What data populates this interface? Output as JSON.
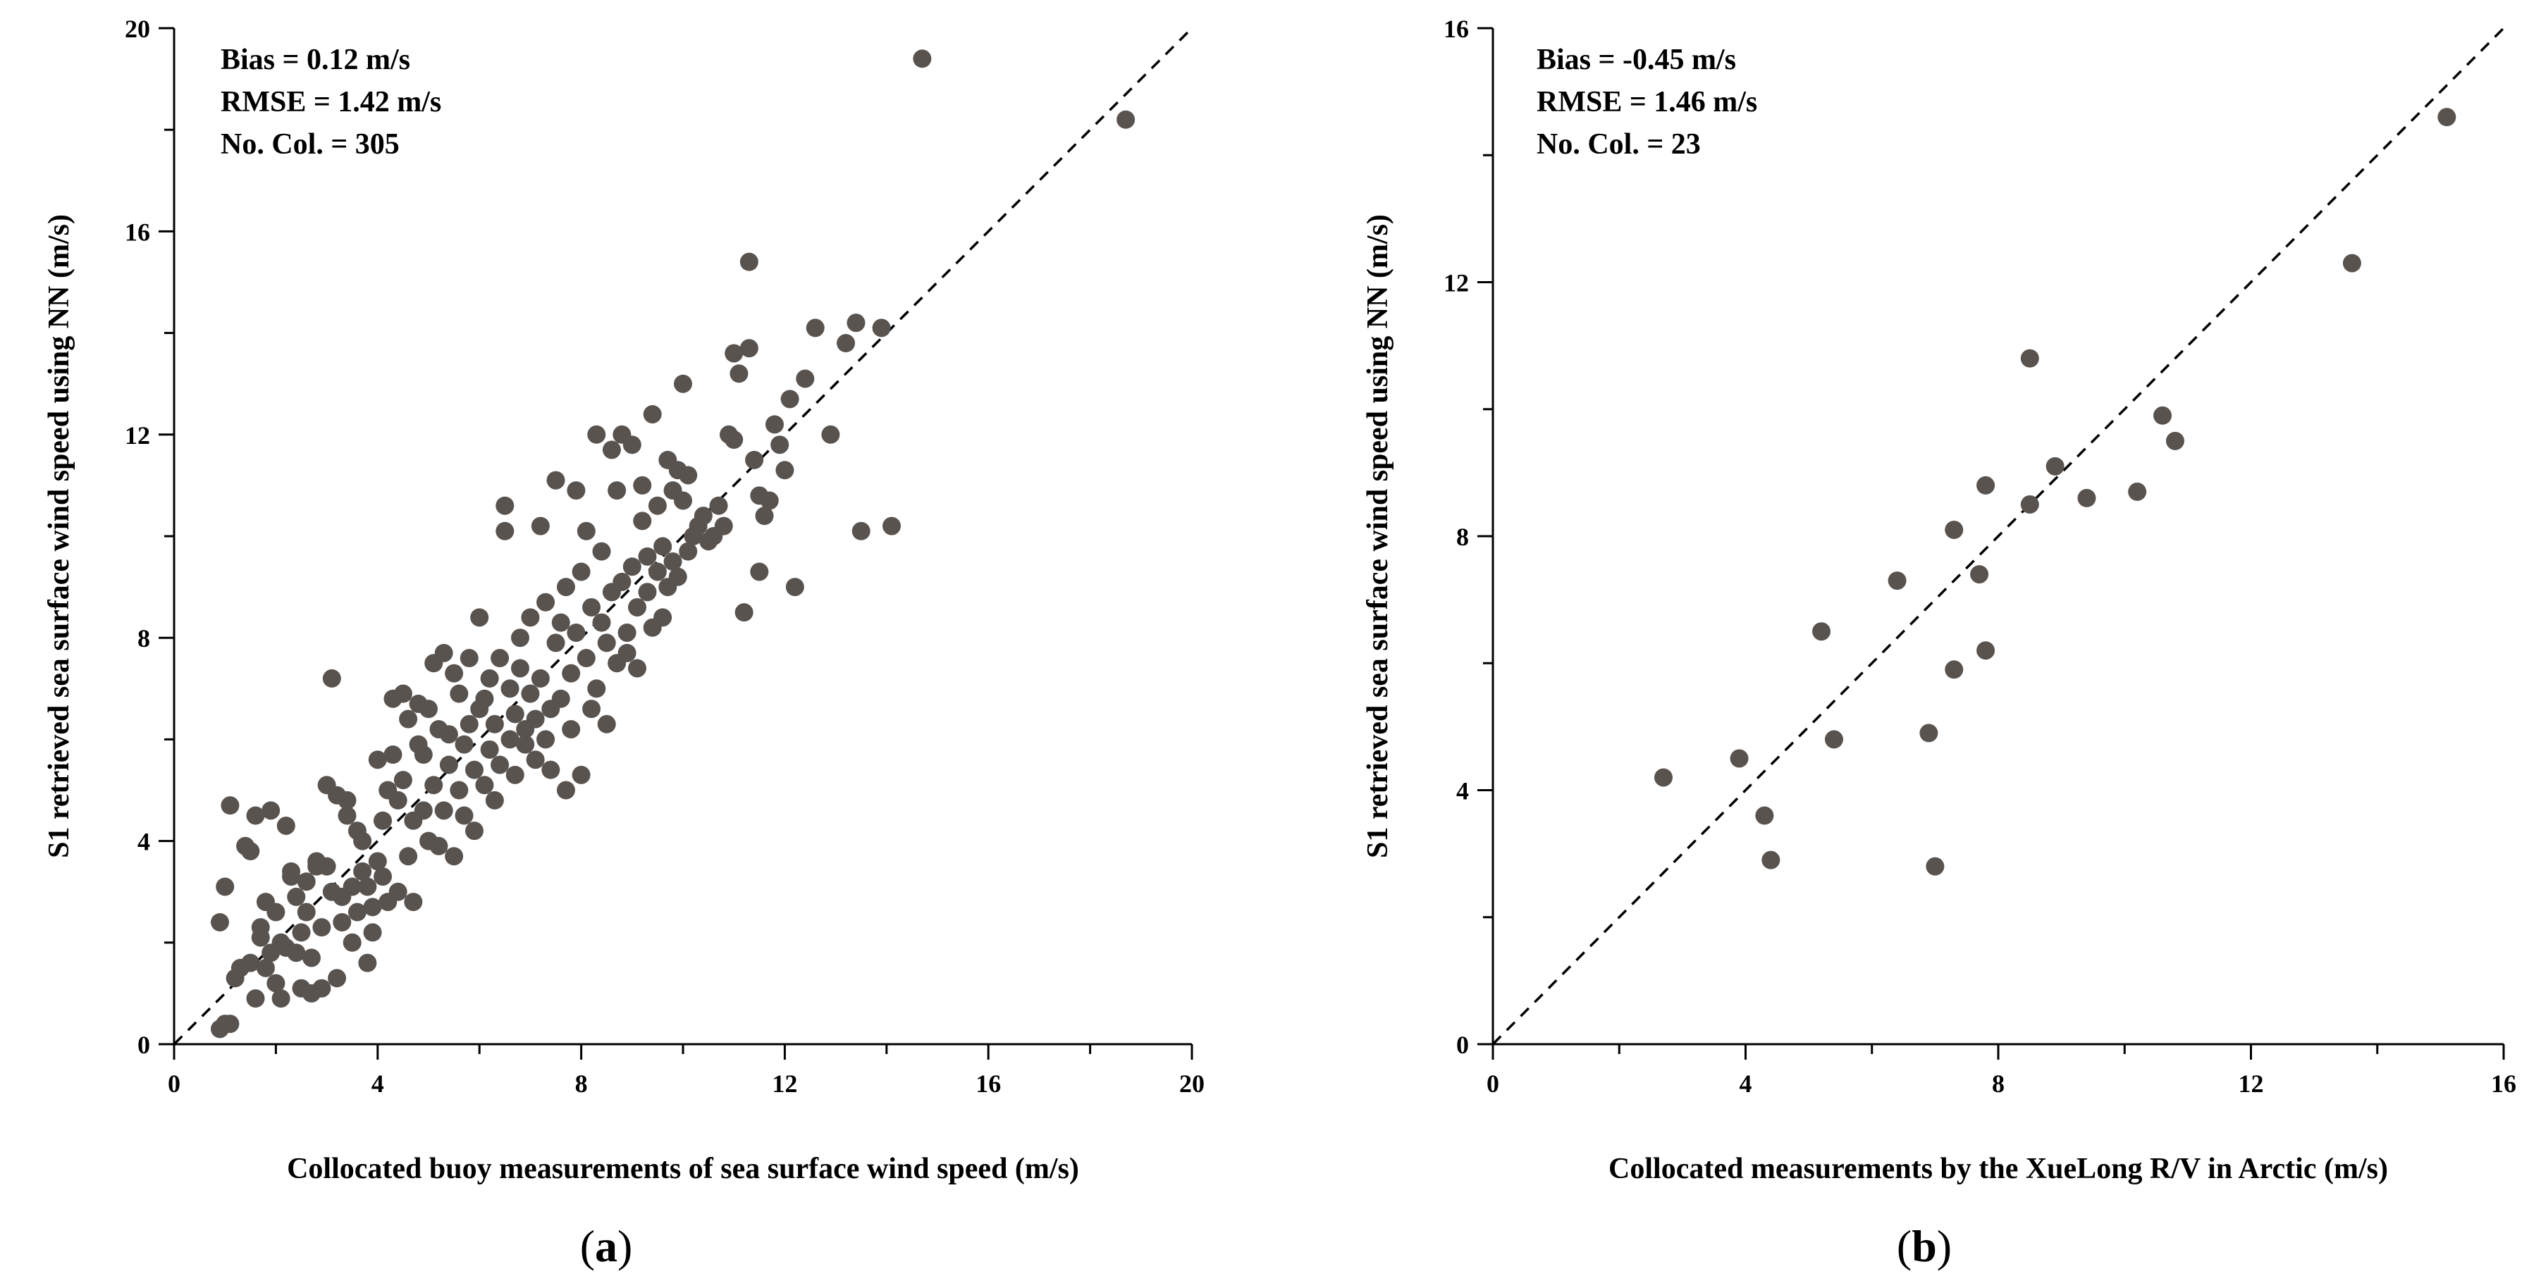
{
  "chart_data": [
    {
      "type": "scatter",
      "panel_label": "(a)",
      "panel_letter": "a",
      "xlabel": "Collocated buoy measurements of sea surface wind speed (m/s)",
      "ylabel": "S1 retrieved sea surface wind speed using NN (m/s)",
      "xlim": [
        0,
        20
      ],
      "ylim": [
        0,
        20
      ],
      "xticks": [
        0,
        4,
        8,
        12,
        16,
        20
      ],
      "yticks": [
        0,
        4,
        8,
        12,
        16,
        20
      ],
      "reference_line": "1:1 dashed",
      "annotations": [
        "Bias = 0.12 m/s",
        "RMSE =  1.42 m/s",
        "No. Col. = 305"
      ],
      "point_color": "#59534f",
      "points": [
        [
          0.9,
          2.4
        ],
        [
          1.0,
          0.4
        ],
        [
          1.1,
          0.4
        ],
        [
          0.9,
          0.3
        ],
        [
          1.2,
          1.3
        ],
        [
          1.0,
          3.1
        ],
        [
          1.1,
          4.7
        ],
        [
          1.3,
          1.5
        ],
        [
          1.4,
          3.9
        ],
        [
          1.5,
          1.6
        ],
        [
          1.5,
          3.8
        ],
        [
          1.6,
          4.5
        ],
        [
          1.6,
          0.9
        ],
        [
          1.7,
          2.1
        ],
        [
          1.7,
          2.3
        ],
        [
          1.8,
          2.8
        ],
        [
          1.8,
          1.5
        ],
        [
          1.9,
          1.8
        ],
        [
          1.9,
          4.6
        ],
        [
          2.0,
          2.6
        ],
        [
          2.0,
          1.2
        ],
        [
          2.1,
          2.0
        ],
        [
          2.1,
          0.9
        ],
        [
          2.2,
          4.3
        ],
        [
          2.2,
          1.9
        ],
        [
          2.3,
          3.3
        ],
        [
          2.3,
          3.4
        ],
        [
          2.4,
          2.9
        ],
        [
          2.4,
          1.8
        ],
        [
          2.5,
          1.1
        ],
        [
          2.5,
          2.2
        ],
        [
          2.6,
          2.6
        ],
        [
          2.6,
          3.2
        ],
        [
          2.7,
          1.0
        ],
        [
          2.7,
          1.7
        ],
        [
          2.8,
          3.5
        ],
        [
          2.8,
          3.6
        ],
        [
          2.9,
          1.1
        ],
        [
          2.9,
          2.3
        ],
        [
          3.0,
          3.5
        ],
        [
          3.0,
          5.1
        ],
        [
          3.1,
          3.0
        ],
        [
          3.1,
          7.2
        ],
        [
          3.2,
          4.9
        ],
        [
          3.2,
          1.3
        ],
        [
          3.3,
          2.4
        ],
        [
          3.3,
          2.9
        ],
        [
          3.4,
          4.5
        ],
        [
          3.4,
          4.8
        ],
        [
          3.5,
          2.0
        ],
        [
          3.5,
          3.1
        ],
        [
          3.6,
          4.2
        ],
        [
          3.6,
          2.6
        ],
        [
          3.7,
          3.4
        ],
        [
          3.7,
          4.0
        ],
        [
          3.8,
          1.6
        ],
        [
          3.8,
          3.1
        ],
        [
          3.9,
          2.2
        ],
        [
          3.9,
          2.7
        ],
        [
          4.0,
          5.6
        ],
        [
          4.0,
          3.6
        ],
        [
          4.1,
          4.4
        ],
        [
          4.1,
          3.3
        ],
        [
          4.2,
          5.0
        ],
        [
          4.2,
          2.8
        ],
        [
          4.3,
          5.7
        ],
        [
          4.3,
          6.8
        ],
        [
          4.4,
          4.8
        ],
        [
          4.4,
          3.0
        ],
        [
          4.5,
          6.9
        ],
        [
          4.5,
          5.2
        ],
        [
          4.6,
          3.7
        ],
        [
          4.6,
          6.4
        ],
        [
          4.7,
          4.4
        ],
        [
          4.7,
          2.8
        ],
        [
          4.8,
          5.9
        ],
        [
          4.8,
          6.7
        ],
        [
          4.9,
          4.6
        ],
        [
          4.9,
          5.7
        ],
        [
          5.0,
          4.0
        ],
        [
          5.0,
          6.6
        ],
        [
          5.1,
          5.1
        ],
        [
          5.1,
          7.5
        ],
        [
          5.2,
          3.9
        ],
        [
          5.2,
          6.2
        ],
        [
          5.3,
          7.7
        ],
        [
          5.3,
          4.6
        ],
        [
          5.4,
          5.5
        ],
        [
          5.4,
          6.1
        ],
        [
          5.5,
          3.7
        ],
        [
          5.5,
          7.3
        ],
        [
          5.6,
          5.0
        ],
        [
          5.6,
          6.9
        ],
        [
          5.7,
          4.5
        ],
        [
          5.7,
          5.9
        ],
        [
          5.8,
          6.3
        ],
        [
          5.8,
          7.6
        ],
        [
          5.9,
          5.4
        ],
        [
          5.9,
          4.2
        ],
        [
          6.0,
          6.6
        ],
        [
          6.0,
          8.4
        ],
        [
          6.1,
          5.1
        ],
        [
          6.1,
          6.8
        ],
        [
          6.2,
          5.8
        ],
        [
          6.2,
          7.2
        ],
        [
          6.3,
          4.8
        ],
        [
          6.3,
          6.3
        ],
        [
          6.4,
          7.6
        ],
        [
          6.4,
          5.5
        ],
        [
          6.5,
          10.1
        ],
        [
          6.5,
          10.6
        ],
        [
          6.6,
          6.0
        ],
        [
          6.6,
          7.0
        ],
        [
          6.7,
          5.3
        ],
        [
          6.7,
          6.5
        ],
        [
          6.8,
          8.0
        ],
        [
          6.8,
          7.4
        ],
        [
          6.9,
          5.9
        ],
        [
          6.9,
          6.2
        ],
        [
          7.0,
          8.4
        ],
        [
          7.0,
          6.9
        ],
        [
          7.1,
          5.6
        ],
        [
          7.1,
          6.4
        ],
        [
          7.2,
          10.2
        ],
        [
          7.2,
          7.2
        ],
        [
          7.3,
          6.0
        ],
        [
          7.3,
          8.7
        ],
        [
          7.4,
          6.6
        ],
        [
          7.4,
          5.4
        ],
        [
          7.5,
          11.1
        ],
        [
          7.5,
          7.9
        ],
        [
          7.6,
          6.8
        ],
        [
          7.6,
          8.3
        ],
        [
          7.7,
          5.0
        ],
        [
          7.7,
          9.0
        ],
        [
          7.8,
          7.3
        ],
        [
          7.8,
          6.2
        ],
        [
          7.9,
          10.9
        ],
        [
          7.9,
          8.1
        ],
        [
          8.0,
          5.3
        ],
        [
          8.0,
          9.3
        ],
        [
          8.1,
          7.6
        ],
        [
          8.1,
          10.1
        ],
        [
          8.2,
          6.6
        ],
        [
          8.2,
          8.6
        ],
        [
          8.3,
          12.0
        ],
        [
          8.3,
          7.0
        ],
        [
          8.4,
          8.3
        ],
        [
          8.4,
          9.7
        ],
        [
          8.5,
          6.3
        ],
        [
          8.5,
          7.9
        ],
        [
          8.6,
          8.9
        ],
        [
          8.6,
          11.7
        ],
        [
          8.7,
          7.5
        ],
        [
          8.7,
          10.9
        ],
        [
          8.8,
          9.1
        ],
        [
          8.8,
          12.0
        ],
        [
          8.9,
          8.1
        ],
        [
          8.9,
          7.7
        ],
        [
          9.0,
          11.8
        ],
        [
          9.0,
          9.4
        ],
        [
          9.1,
          8.6
        ],
        [
          9.1,
          7.4
        ],
        [
          9.2,
          10.3
        ],
        [
          9.2,
          11.0
        ],
        [
          9.3,
          8.9
        ],
        [
          9.3,
          9.6
        ],
        [
          9.4,
          12.4
        ],
        [
          9.4,
          8.2
        ],
        [
          9.5,
          9.3
        ],
        [
          9.5,
          10.6
        ],
        [
          9.6,
          8.4
        ],
        [
          9.6,
          9.8
        ],
        [
          9.7,
          11.5
        ],
        [
          9.7,
          9.0
        ],
        [
          9.8,
          10.9
        ],
        [
          9.8,
          9.5
        ],
        [
          9.9,
          9.2
        ],
        [
          9.9,
          11.3
        ],
        [
          10.0,
          10.7
        ],
        [
          10.0,
          13.0
        ],
        [
          10.1,
          9.7
        ],
        [
          10.1,
          11.2
        ],
        [
          10.2,
          10.0
        ],
        [
          10.3,
          10.2
        ],
        [
          10.4,
          10.4
        ],
        [
          10.5,
          9.9
        ],
        [
          10.6,
          10.0
        ],
        [
          10.7,
          10.6
        ],
        [
          10.8,
          10.2
        ],
        [
          10.9,
          12.0
        ],
        [
          11.0,
          13.6
        ],
        [
          11.0,
          11.9
        ],
        [
          11.1,
          13.2
        ],
        [
          11.2,
          8.5
        ],
        [
          11.3,
          15.4
        ],
        [
          11.3,
          13.7
        ],
        [
          11.4,
          11.5
        ],
        [
          11.5,
          10.8
        ],
        [
          11.5,
          9.3
        ],
        [
          11.6,
          10.4
        ],
        [
          11.7,
          10.7
        ],
        [
          11.8,
          12.2
        ],
        [
          11.9,
          11.8
        ],
        [
          12.0,
          11.3
        ],
        [
          12.1,
          12.7
        ],
        [
          12.2,
          9.0
        ],
        [
          12.4,
          13.1
        ],
        [
          12.6,
          14.1
        ],
        [
          12.9,
          12.0
        ],
        [
          13.2,
          13.8
        ],
        [
          13.4,
          14.2
        ],
        [
          13.5,
          10.1
        ],
        [
          13.9,
          14.1
        ],
        [
          14.1,
          10.2
        ],
        [
          14.7,
          19.4
        ],
        [
          18.7,
          18.2
        ]
      ]
    },
    {
      "type": "scatter",
      "panel_label": "(b)",
      "panel_letter": "b",
      "xlabel": "Collocated  measurements by the XueLong R/V in Arctic (m/s)",
      "ylabel": "S1 retrieved sea surface wind speed using NN (m/s)",
      "xlim": [
        0,
        16
      ],
      "ylim": [
        0,
        16
      ],
      "xticks": [
        0,
        4,
        8,
        12,
        16
      ],
      "yticks": [
        0,
        4,
        8,
        12,
        16
      ],
      "reference_line": "1:1 dashed",
      "annotations": [
        "Bias = -0.45 m/s",
        "RMSE =  1.46 m/s",
        "No. Col. = 23"
      ],
      "point_color": "#59534f",
      "points": [
        [
          2.7,
          4.2
        ],
        [
          3.9,
          4.5
        ],
        [
          4.3,
          3.6
        ],
        [
          4.4,
          2.9
        ],
        [
          5.2,
          6.5
        ],
        [
          5.4,
          4.8
        ],
        [
          6.4,
          7.3
        ],
        [
          6.9,
          4.9
        ],
        [
          7.0,
          2.8
        ],
        [
          7.3,
          8.1
        ],
        [
          7.3,
          5.9
        ],
        [
          7.7,
          7.4
        ],
        [
          7.8,
          6.2
        ],
        [
          7.8,
          8.8
        ],
        [
          8.5,
          10.8
        ],
        [
          8.5,
          8.5
        ],
        [
          8.9,
          9.1
        ],
        [
          9.4,
          8.6
        ],
        [
          10.2,
          8.7
        ],
        [
          10.6,
          9.9
        ],
        [
          10.8,
          9.5
        ],
        [
          13.6,
          12.3
        ],
        [
          15.1,
          14.6
        ]
      ]
    }
  ]
}
